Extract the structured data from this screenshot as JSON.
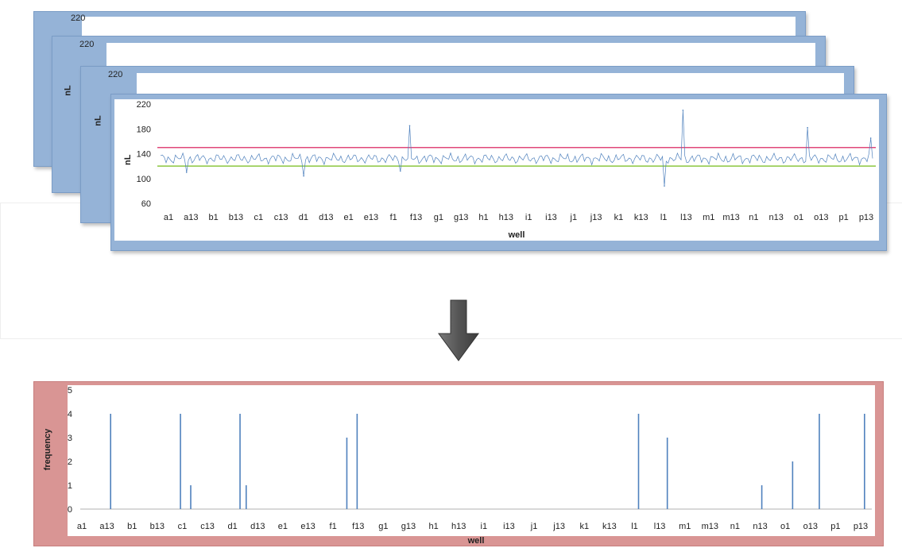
{
  "stack": {
    "back_y_top_labels": [
      "220",
      "220",
      "220"
    ],
    "back_y_axis_label": "nL"
  },
  "colors": {
    "top_panel": "#95b3d7",
    "bottom_panel": "#d99594",
    "upper_limit": "#e0487a",
    "lower_limit": "#8cc63f",
    "series": "#4f81bd"
  },
  "arrow_icon": "down-arrow",
  "chart_data": [
    {
      "type": "line",
      "title": "",
      "xlabel": "well",
      "ylabel": "nL",
      "ylim": [
        60,
        220
      ],
      "yticks": [
        60,
        100,
        140,
        180,
        220
      ],
      "x_tick_labels": [
        "a1",
        "a13",
        "b1",
        "b13",
        "c1",
        "c13",
        "d1",
        "d13",
        "e1",
        "e13",
        "f1",
        "f13",
        "g1",
        "g13",
        "h1",
        "h13",
        "i1",
        "i13",
        "j1",
        "j13",
        "k1",
        "k13",
        "l1",
        "l13",
        "m1",
        "m13",
        "n1",
        "n13",
        "o1",
        "o13",
        "p1",
        "p13"
      ],
      "n_wells": 384,
      "baseline_nL": 132,
      "upper_limit_nL": 150,
      "lower_limit_nL": 120,
      "spikes": [
        {
          "well": 14,
          "value": 110
        },
        {
          "well": 77,
          "value": 104
        },
        {
          "well": 129,
          "value": 112
        },
        {
          "well": 134,
          "value": 185
        },
        {
          "well": 271,
          "value": 88
        },
        {
          "well": 281,
          "value": 210
        },
        {
          "well": 348,
          "value": 182
        },
        {
          "well": 382,
          "value": 165
        }
      ]
    },
    {
      "type": "bar",
      "title": "",
      "xlabel": "well",
      "ylabel": "frequency",
      "ylim": [
        0,
        5
      ],
      "yticks": [
        0,
        1,
        2,
        3,
        4,
        5
      ],
      "x_tick_labels": [
        "a1",
        "a13",
        "b1",
        "b13",
        "c1",
        "c13",
        "d1",
        "d13",
        "e1",
        "e13",
        "f1",
        "f13",
        "g1",
        "g13",
        "h1",
        "h13",
        "i1",
        "i13",
        "j1",
        "j13",
        "k1",
        "k13",
        "l1",
        "l13",
        "m1",
        "m13",
        "n1",
        "n13",
        "o1",
        "o13",
        "p1",
        "p13"
      ],
      "n_wells": 384,
      "bars": [
        {
          "well": 14,
          "value": 4
        },
        {
          "well": 48,
          "value": 4
        },
        {
          "well": 53,
          "value": 1
        },
        {
          "well": 77,
          "value": 4
        },
        {
          "well": 80,
          "value": 1
        },
        {
          "well": 129,
          "value": 3
        },
        {
          "well": 134,
          "value": 4
        },
        {
          "well": 271,
          "value": 4
        },
        {
          "well": 285,
          "value": 3
        },
        {
          "well": 331,
          "value": 1
        },
        {
          "well": 346,
          "value": 2
        },
        {
          "well": 359,
          "value": 4
        },
        {
          "well": 381,
          "value": 4
        }
      ]
    }
  ]
}
